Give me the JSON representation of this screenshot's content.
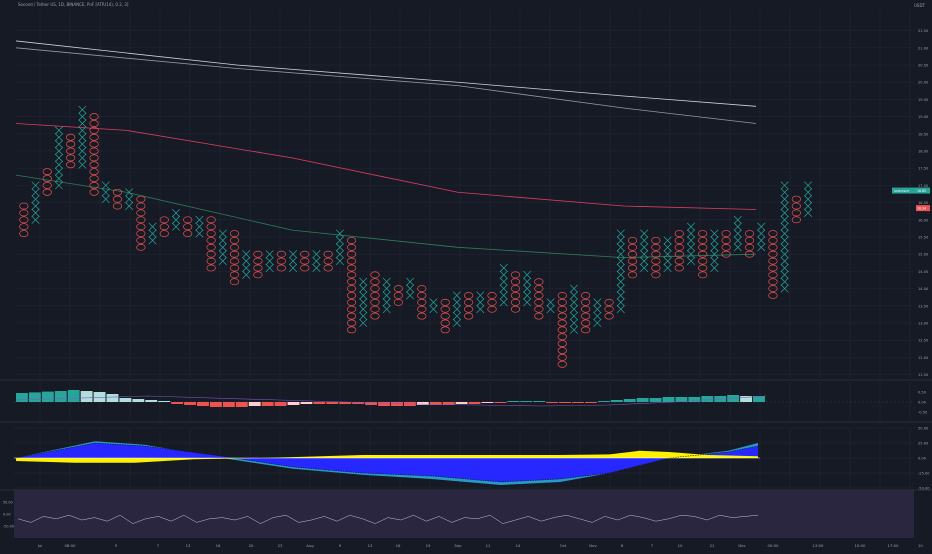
{
  "header": {
    "title": "Second / Tether US, 1D, BINANCE, PnF [ATR(14), 0.2, 3]",
    "currency": "USDT"
  },
  "colors": {
    "bg": "#161a25",
    "grid": "#232838",
    "x": "#26a69a",
    "o": "#ef5350",
    "ma_white": "#d1d4dc",
    "ma_grey": "#9598a1",
    "ma_red": "#e03c64",
    "ma_green": "#2e7d58",
    "hist_teal": "#26a69a",
    "hist_light": "#b2dfdb",
    "hist_red": "#ef5350",
    "hist_pink": "#ffcdd2",
    "blue": "#2727ff",
    "yellow": "#fff200",
    "cyan": "#29a8d8",
    "rsi_bg": "#2a2640",
    "rsi_line": "#c8c8c8"
  },
  "badges": {
    "last": "16.85",
    "last_label": "SCR/USDT",
    "red": "16.34"
  },
  "chart_data": [
    {
      "type": "pnf",
      "axis": {
        "ylim": [
          11.4,
          22.1
        ],
        "ticks": [
          "21.50",
          "21.00",
          "20.50",
          "20.00",
          "19.50",
          "19.00",
          "18.50",
          "18.00",
          "17.50",
          "17.00",
          "16.50",
          "16.00",
          "15.50",
          "15.00",
          "14.50",
          "14.00",
          "13.50",
          "13.00",
          "12.50",
          "12.00",
          "11.50"
        ]
      },
      "box": 0.2,
      "columns": [
        [
          "O",
          15.6,
          16.4
        ],
        [
          "X",
          16.0,
          17.0
        ],
        [
          "O",
          16.8,
          17.4
        ],
        [
          "X",
          17.0,
          18.6
        ],
        [
          "O",
          17.6,
          18.4
        ],
        [
          "X",
          17.6,
          19.2
        ],
        [
          "O",
          16.8,
          19.0
        ],
        [
          "X",
          16.6,
          17.0
        ],
        [
          "O",
          16.4,
          16.8
        ],
        [
          "X",
          16.4,
          16.8
        ],
        [
          "O",
          15.2,
          16.6
        ],
        [
          "X",
          15.4,
          15.8
        ],
        [
          "O",
          15.6,
          16.0
        ],
        [
          "X",
          15.8,
          16.2
        ],
        [
          "O",
          15.6,
          16.0
        ],
        [
          "X",
          15.6,
          16.0
        ],
        [
          "O",
          14.6,
          16.0
        ],
        [
          "X",
          14.8,
          15.6
        ],
        [
          "O",
          14.2,
          15.6
        ],
        [
          "X",
          14.4,
          15.0
        ],
        [
          "O",
          14.4,
          15.0
        ],
        [
          "X",
          14.6,
          15.0
        ],
        [
          "O",
          14.6,
          15.0
        ],
        [
          "X",
          14.6,
          15.0
        ],
        [
          "O",
          14.6,
          15.0
        ],
        [
          "X",
          14.6,
          15.0
        ],
        [
          "O",
          14.6,
          15.0
        ],
        [
          "X",
          14.8,
          15.6
        ],
        [
          "O",
          12.8,
          15.4
        ],
        [
          "X",
          13.0,
          14.2
        ],
        [
          "O",
          13.2,
          14.4
        ],
        [
          "X",
          13.4,
          14.2
        ],
        [
          "O",
          13.6,
          14.0
        ],
        [
          "X",
          13.8,
          14.2
        ],
        [
          "O",
          13.2,
          14.0
        ],
        [
          "X",
          13.4,
          13.6
        ],
        [
          "O",
          12.8,
          13.6
        ],
        [
          "X",
          13.0,
          13.8
        ],
        [
          "O",
          13.2,
          13.8
        ],
        [
          "X",
          13.4,
          13.8
        ],
        [
          "O",
          13.4,
          13.8
        ],
        [
          "X",
          13.6,
          14.6
        ],
        [
          "O",
          13.4,
          14.4
        ],
        [
          "X",
          13.6,
          14.4
        ],
        [
          "O",
          13.2,
          14.2
        ],
        [
          "X",
          13.4,
          13.6
        ],
        [
          "O",
          11.8,
          13.8
        ],
        [
          "X",
          12.8,
          14.0
        ],
        [
          "O",
          12.8,
          13.8
        ],
        [
          "X",
          13.0,
          13.6
        ],
        [
          "O",
          13.2,
          13.6
        ],
        [
          "X",
          13.4,
          15.6
        ],
        [
          "O",
          14.4,
          15.4
        ],
        [
          "X",
          14.6,
          15.6
        ],
        [
          "O",
          14.4,
          15.4
        ],
        [
          "X",
          14.6,
          15.4
        ],
        [
          "O",
          14.6,
          15.6
        ],
        [
          "X",
          14.8,
          15.8
        ],
        [
          "O",
          14.4,
          15.6
        ],
        [
          "X",
          14.6,
          15.6
        ],
        [
          "O",
          15.0,
          15.6
        ],
        [
          "X",
          15.2,
          16.0
        ],
        [
          "O",
          15.0,
          15.6
        ],
        [
          "X",
          15.2,
          15.8
        ],
        [
          "O",
          13.8,
          15.6
        ],
        [
          "X",
          14.0,
          17.0
        ],
        [
          "O",
          16.0,
          16.6
        ],
        [
          "X",
          16.2,
          17.0
        ]
      ],
      "ma": {
        "white": [
          [
            0,
            21.2
          ],
          [
            20,
            20.5
          ],
          [
            40,
            20.0
          ],
          [
            55,
            19.6
          ],
          [
            67,
            19.3
          ]
        ],
        "grey": [
          [
            0,
            21.0
          ],
          [
            20,
            20.4
          ],
          [
            40,
            19.9
          ],
          [
            55,
            19.25
          ],
          [
            67,
            18.8
          ]
        ],
        "red": [
          [
            0,
            18.8
          ],
          [
            10,
            18.6
          ],
          [
            25,
            17.8
          ],
          [
            40,
            16.8
          ],
          [
            55,
            16.4
          ],
          [
            67,
            16.3
          ]
        ],
        "green": [
          [
            0,
            17.3
          ],
          [
            10,
            16.8
          ],
          [
            25,
            15.7
          ],
          [
            40,
            15.2
          ],
          [
            55,
            14.9
          ],
          [
            67,
            15.0
          ]
        ]
      }
    },
    {
      "type": "bar",
      "axis": {
        "ylim": [
          -0.9,
          1.0
        ],
        "ticks": [
          "0.50",
          "0.00",
          "-0.50"
        ]
      },
      "values": [
        0.45,
        0.48,
        0.52,
        0.55,
        0.6,
        0.55,
        0.5,
        0.4,
        0.2,
        0.15,
        0.1,
        0.05,
        -0.1,
        -0.15,
        -0.2,
        -0.25,
        -0.25,
        -0.25,
        -0.2,
        -0.2,
        -0.2,
        -0.15,
        -0.1,
        -0.1,
        -0.1,
        -0.1,
        -0.1,
        -0.15,
        -0.2,
        -0.2,
        -0.2,
        -0.15,
        -0.15,
        -0.15,
        -0.1,
        -0.1,
        -0.05,
        -0.05,
        0.05,
        0.05,
        0.05,
        -0.05,
        -0.05,
        -0.05,
        -0.05,
        0.05,
        0.1,
        0.15,
        0.2,
        0.2,
        0.25,
        0.25,
        0.25,
        0.3,
        0.3,
        0.35,
        0.3,
        0.3
      ],
      "signal": [
        [
          0,
          0.1
        ],
        [
          10,
          0.3
        ],
        [
          20,
          0.1
        ],
        [
          30,
          -0.1
        ],
        [
          40,
          -0.2
        ],
        [
          45,
          -0.15
        ],
        [
          50,
          0.0
        ],
        [
          57,
          0.3
        ]
      ]
    },
    {
      "type": "area",
      "axis": {
        "ylim": [
          -50,
          50
        ],
        "ticks": [
          "50.00",
          "25.00",
          "0.00",
          "-25.00",
          "-50.00"
        ]
      },
      "blue": [
        [
          0,
          0
        ],
        [
          8,
          25
        ],
        [
          13,
          20
        ],
        [
          20,
          5
        ],
        [
          28,
          -15
        ],
        [
          35,
          -25
        ],
        [
          42,
          -30
        ],
        [
          49,
          -40
        ],
        [
          55,
          -35
        ],
        [
          60,
          -25
        ],
        [
          66,
          0
        ],
        [
          72,
          10
        ],
        [
          75,
          20
        ]
      ],
      "cyan": [
        [
          0,
          0
        ],
        [
          8,
          28
        ],
        [
          13,
          22
        ],
        [
          20,
          2
        ],
        [
          28,
          -18
        ],
        [
          35,
          -28
        ],
        [
          42,
          -35
        ],
        [
          49,
          -45
        ],
        [
          55,
          -40
        ],
        [
          60,
          -25
        ],
        [
          66,
          0
        ],
        [
          72,
          12
        ],
        [
          75,
          25
        ]
      ],
      "yellow": [
        [
          0,
          -5
        ],
        [
          6,
          -8
        ],
        [
          12,
          -8
        ],
        [
          18,
          -2
        ],
        [
          25,
          0
        ],
        [
          35,
          5
        ],
        [
          45,
          5
        ],
        [
          55,
          5
        ],
        [
          60,
          6
        ],
        [
          63,
          12
        ],
        [
          66,
          10
        ],
        [
          70,
          5
        ],
        [
          75,
          3
        ]
      ]
    },
    {
      "type": "line",
      "axis": {
        "ylim": [
          -100,
          100
        ],
        "ticks": [
          "50.00",
          "0.00",
          "-50.00"
        ]
      },
      "values": [
        -20,
        -35,
        -10,
        -20,
        -5,
        -25,
        -15,
        -30,
        -5,
        -40,
        -20,
        -10,
        -30,
        -5,
        -35,
        -20,
        -15,
        -25,
        -10,
        -40,
        -15,
        -5,
        -35,
        -25,
        -10,
        -30,
        -5,
        -20,
        -40,
        -15,
        -25,
        -5,
        -30,
        -10,
        -35,
        -15,
        -20,
        -5,
        -40,
        -25,
        -10,
        -30,
        -15,
        -5,
        -20,
        -35,
        -10,
        -25,
        -5,
        -15,
        -30,
        -20,
        -5,
        -10,
        -25,
        -5,
        -15,
        -10,
        -5
      ]
    }
  ],
  "xaxis": {
    "labels": [
      [
        "Jul",
        40
      ],
      [
        "08:00",
        70
      ],
      [
        "5",
        116
      ],
      [
        "7",
        158
      ],
      [
        "13",
        188
      ],
      [
        "16",
        218
      ],
      [
        "20",
        251
      ],
      [
        "23",
        280
      ],
      [
        "Aug",
        310
      ],
      [
        "9",
        340
      ],
      [
        "13",
        370
      ],
      [
        "16",
        398
      ],
      [
        "19",
        428
      ],
      [
        "Sep",
        458
      ],
      [
        "11",
        488
      ],
      [
        "14",
        518
      ],
      [
        "Oct",
        563
      ],
      [
        "Nov",
        593
      ],
      [
        "6",
        622
      ],
      [
        "7",
        652
      ],
      [
        "10",
        680
      ],
      [
        "21",
        712
      ],
      [
        "Dec",
        742
      ],
      [
        "00:00",
        773
      ],
      [
        "13:00",
        818
      ],
      [
        "15:00",
        860
      ],
      [
        "17:00",
        893
      ]
    ],
    "right": "10"
  }
}
